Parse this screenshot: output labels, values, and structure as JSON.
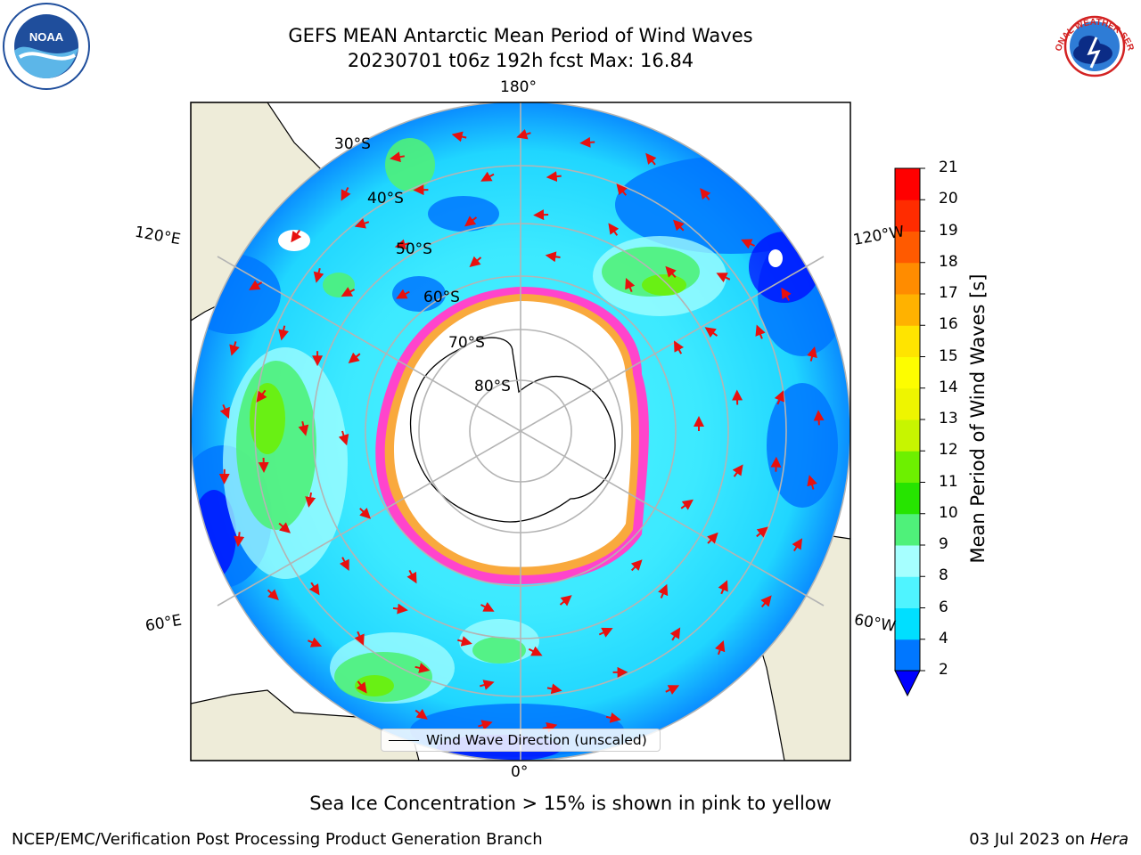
{
  "title": {
    "line1": "GEFS MEAN Antarctic Mean Period of Wind Waves",
    "line2": "20230701 t06z 192h fcst   Max: 16.84"
  },
  "logos": {
    "left": {
      "icon": "noaa-logo-icon",
      "text": "NOAA"
    },
    "right": {
      "icon": "national-weather-service-logo-icon",
      "text": "NATIONAL WEATHER SERVICE"
    }
  },
  "map": {
    "projection": "south-polar-stereographic",
    "longitude_labels": {
      "top": "180°",
      "bottom": "0°",
      "upper_left": "120°E",
      "lower_left": "60°E",
      "upper_right": "120°W",
      "lower_right": "60°W"
    },
    "latitude_labels": [
      "30°S",
      "40°S",
      "50°S",
      "60°S",
      "70°S",
      "80°S"
    ],
    "colors": {
      "land": "#eeecd9",
      "sea_ice": "#ffffff",
      "ice_edge_pink": "#ff44cc",
      "ice_edge_yellow": "#f6d400",
      "arrow": "#e8100e",
      "gridline": "#b4b4b4"
    },
    "legend": "Wind Wave Direction (unscaled)"
  },
  "colorbar": {
    "label": "Mean Period of Wind Waves [s]",
    "ticks": [
      "2",
      "4",
      "6",
      "8",
      "9",
      "10",
      "11",
      "12",
      "13",
      "14",
      "15",
      "16",
      "17",
      "18",
      "19",
      "20",
      "21"
    ],
    "colors": [
      "#0077ff",
      "#00dfff",
      "#4ff4ff",
      "#a6ffff",
      "#4ff17a",
      "#26e400",
      "#6df000",
      "#c7f500",
      "#eef500",
      "#fdfd00",
      "#ffe400",
      "#ffb200",
      "#ff8c00",
      "#ff5a00",
      "#ff2c00",
      "#ff0000"
    ],
    "under_color": "#0000ff"
  },
  "notes": {
    "ice": "Sea Ice Concentration > 15% is shown in pink to yellow",
    "footer_left": "NCEP/EMC/Verification Post Processing Product Generation Branch",
    "footer_right_prefix": "03 Jul 2023 on ",
    "footer_right_host": "Hera"
  }
}
